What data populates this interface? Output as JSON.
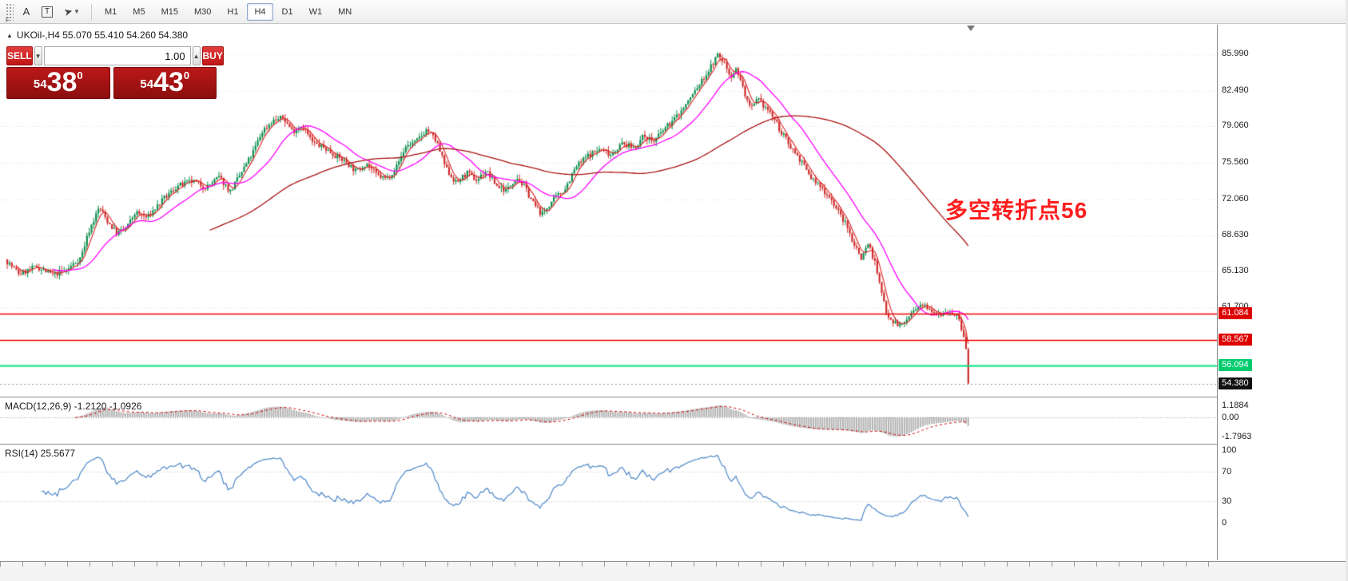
{
  "toolbar": {
    "grip_label": "F",
    "tools": [
      {
        "name": "text-tool",
        "label": "A"
      },
      {
        "name": "text-label-tool",
        "label": "T"
      }
    ],
    "timeframes": [
      "M1",
      "M5",
      "M15",
      "M30",
      "H1",
      "H4",
      "D1",
      "W1",
      "MN"
    ],
    "active_timeframe": "H4"
  },
  "chart": {
    "symbol_line": "UKOil-,H4  55.070 55.410 54.260 54.380",
    "annotation": "多空转折点56",
    "annotation_color": "#fe1d1d",
    "axis_labels": [
      "85.990",
      "82.490",
      "79.060",
      "75.560",
      "72.060",
      "68.630",
      "65.130",
      "61.700"
    ],
    "hlines": [
      {
        "value": 61.084,
        "color": "#ee0000",
        "width": 1.6
      },
      {
        "value": 58.567,
        "color": "#ee0000",
        "width": 1.6
      },
      {
        "value": 56.094,
        "color": "#00e27a",
        "width": 2
      }
    ],
    "price_tags": [
      {
        "label": "61.084",
        "value": 61.084,
        "bg": "#dd0000",
        "fg": "#ffffff"
      },
      {
        "label": "58.567",
        "value": 58.567,
        "bg": "#dd0000",
        "fg": "#ffffff"
      },
      {
        "label": "56.094",
        "value": 56.094,
        "bg": "#00cc6e",
        "fg": "#ffffff"
      },
      {
        "label": "54.380",
        "value": 54.38,
        "bg": "#111111",
        "fg": "#ffffff"
      }
    ],
    "current_price": 54.38
  },
  "trade_panel": {
    "sell_label": "SELL",
    "buy_label": "BUY",
    "volume": "1.00",
    "dropdown_glyph": "▼",
    "up_glyph": "▲",
    "sell_price": {
      "small": "54",
      "big": "38",
      "sup": "0"
    },
    "buy_price": {
      "small": "54",
      "big": "43",
      "sup": "0"
    }
  },
  "macd": {
    "label": "MACD(12,26,9) -1.2120 -1.0926",
    "axis": [
      "1.1884",
      "0.00",
      "-1.7963"
    ]
  },
  "rsi": {
    "label": "RSI(14) 25.5677",
    "axis": [
      "100",
      "70",
      "30",
      "0"
    ]
  },
  "chart_data": {
    "type": "candlestick",
    "symbol": "UKOil-",
    "period": "H4",
    "ohlc_display": {
      "open": 55.07,
      "high": 55.41,
      "low": 54.26,
      "close": 54.38
    },
    "price_axis_range": [
      54.0,
      87.5
    ],
    "colors": {
      "candle_up": "#0d8f4f",
      "candle_down": "#cf2b2b",
      "ma_fast": "#dd2222",
      "ma_mid": "#ff00ff",
      "ma_slow": "#aa1111",
      "macd_hist": "#b3b3b3",
      "macd_signal": "#d00000",
      "rsi_line": "#4a86c8"
    },
    "ma_periods": {
      "fast": 5,
      "mid": 21,
      "slow": 90
    },
    "waypoints": [
      [
        0,
        66.3
      ],
      [
        18,
        64.9
      ],
      [
        40,
        65.6
      ],
      [
        60,
        64.8
      ],
      [
        78,
        65.3
      ],
      [
        95,
        66.5
      ],
      [
        105,
        69.0
      ],
      [
        118,
        71.3
      ],
      [
        128,
        70.0
      ],
      [
        140,
        68.8
      ],
      [
        152,
        69.3
      ],
      [
        163,
        70.8
      ],
      [
        178,
        70.3
      ],
      [
        195,
        71.8
      ],
      [
        215,
        73.3
      ],
      [
        235,
        73.8
      ],
      [
        252,
        73.2
      ],
      [
        268,
        74.2
      ],
      [
        282,
        72.8
      ],
      [
        295,
        74.5
      ],
      [
        310,
        76.5
      ],
      [
        322,
        78.6
      ],
      [
        335,
        79.6
      ],
      [
        348,
        79.9
      ],
      [
        360,
        78.6
      ],
      [
        372,
        79.2
      ],
      [
        385,
        77.5
      ],
      [
        400,
        77.0
      ],
      [
        415,
        76.2
      ],
      [
        428,
        75.6
      ],
      [
        440,
        74.7
      ],
      [
        452,
        75.6
      ],
      [
        465,
        74.4
      ],
      [
        478,
        74.0
      ],
      [
        490,
        75.2
      ],
      [
        502,
        77.2
      ],
      [
        515,
        77.6
      ],
      [
        528,
        78.8
      ],
      [
        540,
        77.6
      ],
      [
        552,
        75.0
      ],
      [
        565,
        73.6
      ],
      [
        578,
        74.6
      ],
      [
        590,
        73.9
      ],
      [
        602,
        74.8
      ],
      [
        615,
        73.4
      ],
      [
        628,
        72.9
      ],
      [
        640,
        74.3
      ],
      [
        652,
        73.0
      ],
      [
        662,
        71.6
      ],
      [
        672,
        70.6
      ],
      [
        685,
        71.9
      ],
      [
        700,
        73.0
      ],
      [
        715,
        75.2
      ],
      [
        730,
        76.3
      ],
      [
        745,
        76.9
      ],
      [
        758,
        76.4
      ],
      [
        772,
        77.4
      ],
      [
        788,
        77.0
      ],
      [
        800,
        78.2
      ],
      [
        812,
        77.6
      ],
      [
        825,
        78.8
      ],
      [
        838,
        79.8
      ],
      [
        850,
        80.9
      ],
      [
        862,
        82.3
      ],
      [
        872,
        83.4
      ],
      [
        882,
        84.6
      ],
      [
        892,
        85.9
      ],
      [
        900,
        85.2
      ],
      [
        908,
        83.9
      ],
      [
        916,
        84.6
      ],
      [
        925,
        82.4
      ],
      [
        933,
        80.6
      ],
      [
        942,
        81.6
      ],
      [
        952,
        80.9
      ],
      [
        962,
        79.9
      ],
      [
        972,
        78.4
      ],
      [
        983,
        77.2
      ],
      [
        995,
        75.9
      ],
      [
        1008,
        74.2
      ],
      [
        1020,
        73.3
      ],
      [
        1032,
        72.3
      ],
      [
        1042,
        71.0
      ],
      [
        1052,
        69.7
      ],
      [
        1062,
        67.9
      ],
      [
        1072,
        66.4
      ],
      [
        1080,
        67.9
      ],
      [
        1088,
        66.2
      ],
      [
        1096,
        63.4
      ],
      [
        1104,
        61.1
      ],
      [
        1112,
        60.3
      ],
      [
        1122,
        59.9
      ],
      [
        1132,
        60.9
      ],
      [
        1142,
        61.6
      ],
      [
        1152,
        61.9
      ],
      [
        1162,
        61.4
      ],
      [
        1172,
        61.1
      ],
      [
        1182,
        61.3
      ],
      [
        1192,
        60.8
      ],
      [
        1199,
        59.2
      ],
      [
        1204,
        57.1
      ],
      [
        1207,
        54.6
      ]
    ],
    "last_close": 54.38
  }
}
